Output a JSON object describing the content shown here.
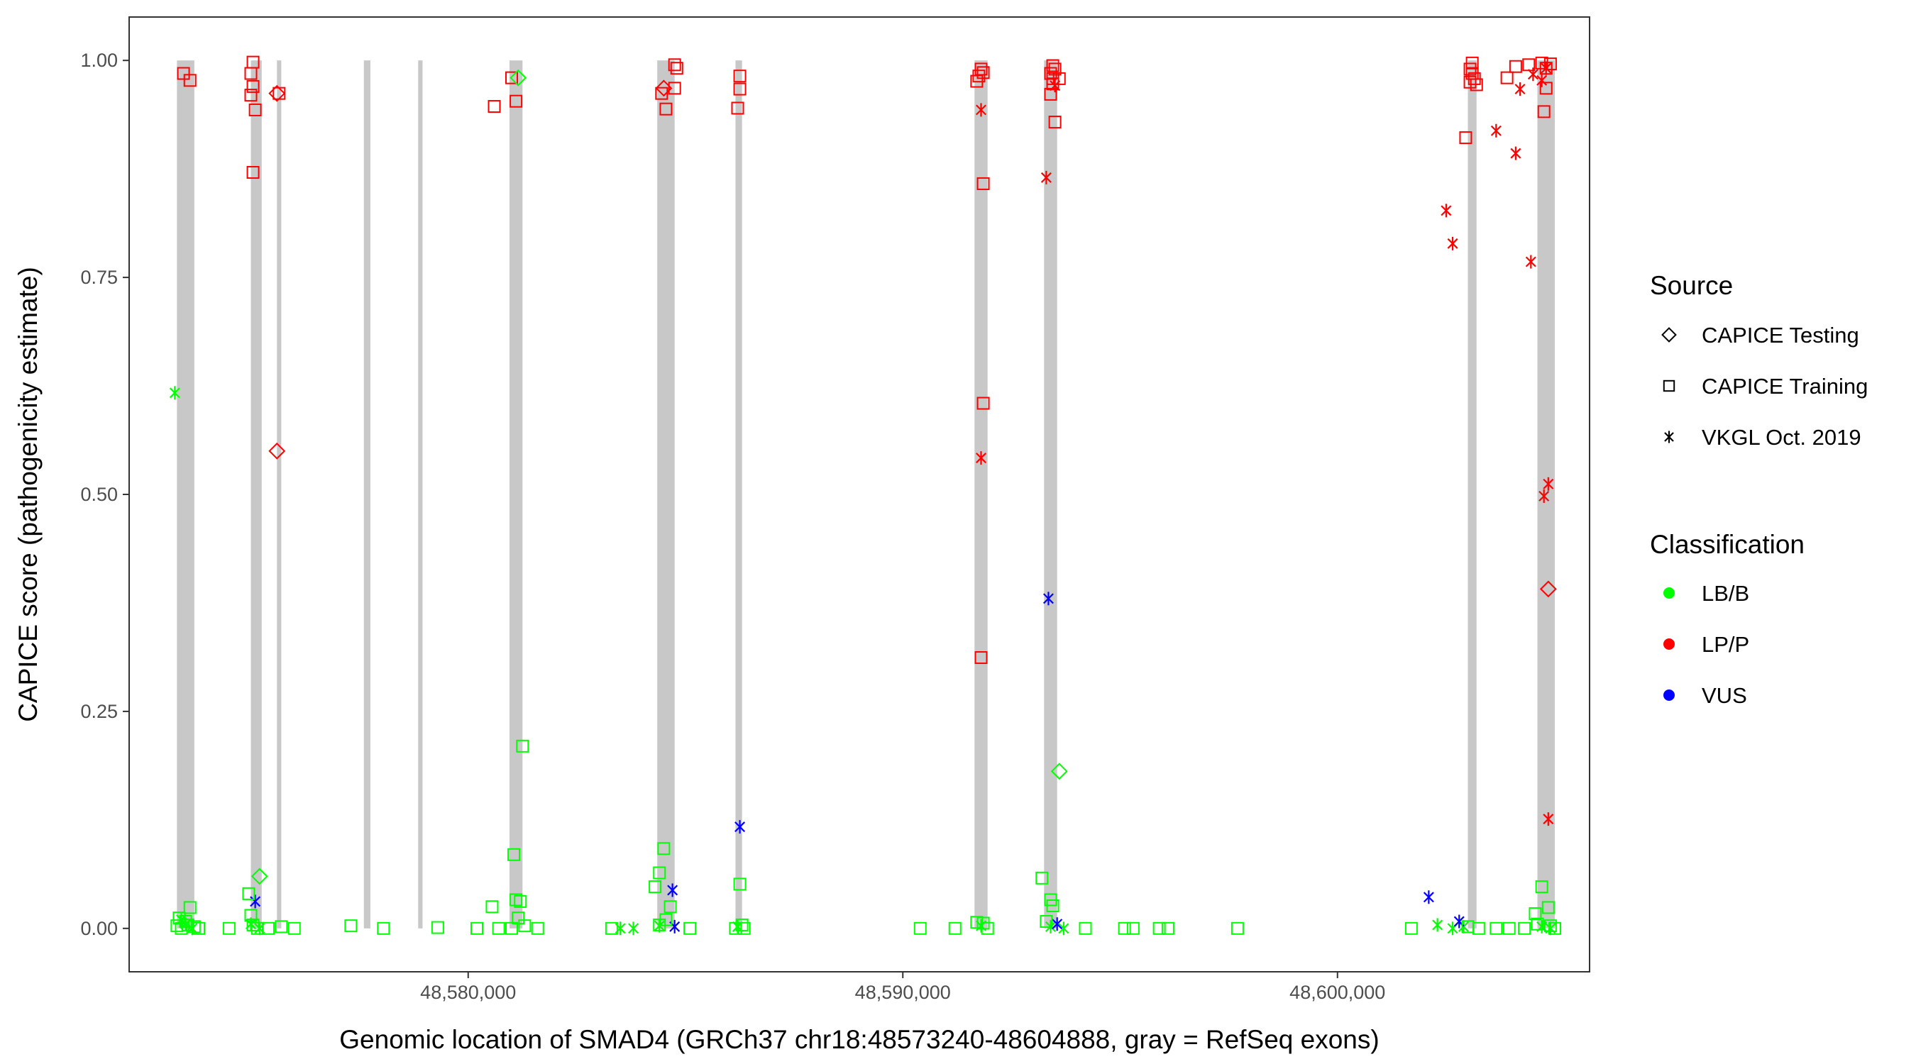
{
  "chart_data": {
    "type": "scatter",
    "title": "",
    "xlabel": "Genomic location of SMAD4 (GRCh37 chr18:48573240-48604888, gray = RefSeq exons)",
    "ylabel": "CAPICE score (pathogenicity estimate)",
    "xlim": [
      48572200,
      48605800
    ],
    "ylim": [
      -0.05,
      1.05
    ],
    "x_ticks": [
      48580000,
      48590000,
      48600000
    ],
    "x_tick_labels": [
      "48,580,000",
      "48,590,000",
      "48,600,000"
    ],
    "y_ticks": [
      0,
      0.25,
      0.5,
      0.75,
      1.0
    ],
    "y_tick_labels": [
      "0.00",
      "0.25",
      "0.50",
      "0.75",
      "1.00"
    ],
    "grid": false,
    "exons": [
      [
        48573300,
        48573700
      ],
      [
        48575000,
        48575250
      ],
      [
        48575600,
        48575700
      ],
      [
        48577600,
        48577750
      ],
      [
        48578850,
        48578950
      ],
      [
        48580950,
        48581250
      ],
      [
        48584350,
        48584750
      ],
      [
        48586150,
        48586300
      ],
      [
        48591650,
        48591950
      ],
      [
        48593250,
        48593550
      ],
      [
        48603000,
        48603200
      ],
      [
        48604600,
        48605000
      ]
    ],
    "legend": {
      "position": "right",
      "source_title": "Source",
      "source_items": [
        {
          "label": "CAPICE Testing",
          "shape": "diamond"
        },
        {
          "label": "CAPICE Training",
          "shape": "square"
        },
        {
          "label": "VKGL Oct. 2019",
          "shape": "asterisk"
        }
      ],
      "classification_title": "Classification",
      "classification_items": [
        {
          "label": "LB/B",
          "color": "#00ff00"
        },
        {
          "label": "LP/P",
          "color": "#ff0000"
        },
        {
          "label": "VUS",
          "color": "#0000ff"
        }
      ]
    },
    "series": [
      {
        "source": "CAPICE Training",
        "classification": "LP/P",
        "shape": "square",
        "color": "#ff0000",
        "points": [
          [
            48573450,
            0.985
          ],
          [
            48573600,
            0.977
          ],
          [
            48575050,
            0.998
          ],
          [
            48575000,
            0.985
          ],
          [
            48575050,
            0.97
          ],
          [
            48575000,
            0.96
          ],
          [
            48575100,
            0.943
          ],
          [
            48575050,
            0.871
          ],
          [
            48575650,
            0.962
          ],
          [
            48580600,
            0.947
          ],
          [
            48581000,
            0.98
          ],
          [
            48581100,
            0.953
          ],
          [
            48584450,
            0.962
          ],
          [
            48584550,
            0.944
          ],
          [
            48584750,
            0.995
          ],
          [
            48584800,
            0.991
          ],
          [
            48584750,
            0.968
          ],
          [
            48586250,
            0.982
          ],
          [
            48586250,
            0.967
          ],
          [
            48586200,
            0.945
          ],
          [
            48591800,
            0.99
          ],
          [
            48591850,
            0.986
          ],
          [
            48591750,
            0.982
          ],
          [
            48591700,
            0.976
          ],
          [
            48591850,
            0.858
          ],
          [
            48591850,
            0.605
          ],
          [
            48591800,
            0.312
          ],
          [
            48593450,
            0.994
          ],
          [
            48593500,
            0.99
          ],
          [
            48593400,
            0.985
          ],
          [
            48593450,
            0.979
          ],
          [
            48593600,
            0.979
          ],
          [
            48593450,
            0.973
          ],
          [
            48593400,
            0.961
          ],
          [
            48593500,
            0.929
          ],
          [
            48603100,
            0.997
          ],
          [
            48603050,
            0.99
          ],
          [
            48603100,
            0.985
          ],
          [
            48603150,
            0.979
          ],
          [
            48603050,
            0.975
          ],
          [
            48603200,
            0.972
          ],
          [
            48602950,
            0.911
          ],
          [
            48604100,
            0.993
          ],
          [
            48604400,
            0.995
          ],
          [
            48604700,
            0.997
          ],
          [
            48604800,
            0.991
          ],
          [
            48604900,
            0.996
          ],
          [
            48603900,
            0.98
          ],
          [
            48604800,
            0.968
          ],
          [
            48604750,
            0.941
          ]
        ]
      },
      {
        "source": "CAPICE Testing",
        "classification": "LP/P",
        "shape": "diamond",
        "color": "#ff0000",
        "points": [
          [
            48575600,
            0.962
          ],
          [
            48575600,
            0.55
          ],
          [
            48584500,
            0.968
          ],
          [
            48604850,
            0.391
          ]
        ]
      },
      {
        "source": "VKGL Oct. 2019",
        "classification": "LP/P",
        "shape": "asterisk",
        "color": "#ff0000",
        "points": [
          [
            48591800,
            0.943
          ],
          [
            48591800,
            0.542
          ],
          [
            48593300,
            0.865
          ],
          [
            48593500,
            0.971
          ],
          [
            48602500,
            0.827
          ],
          [
            48602650,
            0.789
          ],
          [
            48603650,
            0.919
          ],
          [
            48604100,
            0.893
          ],
          [
            48604200,
            0.967
          ],
          [
            48604500,
            0.984
          ],
          [
            48604450,
            0.768
          ],
          [
            48604700,
            0.977
          ],
          [
            48604800,
            0.991
          ],
          [
            48604850,
            0.512
          ],
          [
            48604750,
            0.498
          ],
          [
            48604850,
            0.126
          ]
        ]
      },
      {
        "source": "VKGL Oct. 2019",
        "classification": "LB/B",
        "shape": "asterisk",
        "color": "#00ff00",
        "points": [
          [
            48573250,
            0.617
          ],
          [
            48573400,
            0.01
          ],
          [
            48573500,
            0.005
          ],
          [
            48573650,
            0.0
          ],
          [
            48575000,
            0.005
          ],
          [
            48575200,
            0.0
          ],
          [
            48583500,
            0.0
          ],
          [
            48583800,
            0.0
          ],
          [
            48584400,
            0.003
          ],
          [
            48586200,
            0.002
          ],
          [
            48591800,
            0.003
          ],
          [
            48593400,
            0.002
          ],
          [
            48593700,
            0.0
          ],
          [
            48602300,
            0.004
          ],
          [
            48602650,
            0.0
          ],
          [
            48602900,
            0.002
          ],
          [
            48604700,
            0.002
          ],
          [
            48604900,
            0.0
          ]
        ]
      },
      {
        "source": "VKGL Oct. 2019",
        "classification": "VUS",
        "shape": "asterisk",
        "color": "#0000ff",
        "points": [
          [
            48575100,
            0.031
          ],
          [
            48584700,
            0.044
          ],
          [
            48584750,
            0.002
          ],
          [
            48586250,
            0.117
          ],
          [
            48593350,
            0.38
          ],
          [
            48593550,
            0.005
          ],
          [
            48602100,
            0.036
          ],
          [
            48602800,
            0.008
          ]
        ]
      },
      {
        "source": "CAPICE Testing",
        "classification": "LB/B",
        "shape": "diamond",
        "color": "#00ff00",
        "points": [
          [
            48581150,
            0.98
          ],
          [
            48575200,
            0.06
          ],
          [
            48593600,
            0.181
          ]
        ]
      },
      {
        "source": "CAPICE Training",
        "classification": "LB/B",
        "shape": "square",
        "color": "#00ff00",
        "points": [
          [
            48573350,
            0.012
          ],
          [
            48573500,
            0.008
          ],
          [
            48573600,
            0.024
          ],
          [
            48573550,
            0.004
          ],
          [
            48573700,
            0.002
          ],
          [
            48573800,
            0.0
          ],
          [
            48573400,
            0.0
          ],
          [
            48573300,
            0.003
          ],
          [
            48574500,
            0.0
          ],
          [
            48574950,
            0.04
          ],
          [
            48575000,
            0.015
          ],
          [
            48575050,
            0.004
          ],
          [
            48575150,
            0.0
          ],
          [
            48575400,
            0.0
          ],
          [
            48575700,
            0.002
          ],
          [
            48576000,
            0.0
          ],
          [
            48577300,
            0.003
          ],
          [
            48578050,
            0.0
          ],
          [
            48579300,
            0.001
          ],
          [
            48580200,
            0.0
          ],
          [
            48580550,
            0.025
          ],
          [
            48580700,
            0.0
          ],
          [
            48581000,
            0.0
          ],
          [
            48581050,
            0.085
          ],
          [
            48581100,
            0.033
          ],
          [
            48581200,
            0.031
          ],
          [
            48581150,
            0.012
          ],
          [
            48581250,
            0.21
          ],
          [
            48581300,
            0.003
          ],
          [
            48581600,
            0.0
          ],
          [
            48583300,
            0.0
          ],
          [
            48584300,
            0.048
          ],
          [
            48584400,
            0.064
          ],
          [
            48584500,
            0.092
          ],
          [
            48584650,
            0.025
          ],
          [
            48584550,
            0.01
          ],
          [
            48584400,
            0.004
          ],
          [
            48585100,
            0.0
          ],
          [
            48586150,
            0.0
          ],
          [
            48586250,
            0.051
          ],
          [
            48586300,
            0.004
          ],
          [
            48586350,
            0.0
          ],
          [
            48590400,
            0.0
          ],
          [
            48591200,
            0.0
          ],
          [
            48591700,
            0.007
          ],
          [
            48591850,
            0.006
          ],
          [
            48591950,
            0.0
          ],
          [
            48593200,
            0.058
          ],
          [
            48593400,
            0.033
          ],
          [
            48593450,
            0.026
          ],
          [
            48593300,
            0.008
          ],
          [
            48594200,
            0.0
          ],
          [
            48595100,
            0.0
          ],
          [
            48595300,
            0.0
          ],
          [
            48595900,
            0.0
          ],
          [
            48596100,
            0.0
          ],
          [
            48597700,
            0.0
          ],
          [
            48601700,
            0.0
          ],
          [
            48603000,
            0.002
          ],
          [
            48603250,
            0.0
          ],
          [
            48603650,
            0.0
          ],
          [
            48603950,
            0.0
          ],
          [
            48604300,
            0.0
          ],
          [
            48604700,
            0.048
          ],
          [
            48604850,
            0.024
          ],
          [
            48604550,
            0.017
          ],
          [
            48604600,
            0.005
          ],
          [
            48604900,
            0.003
          ],
          [
            48605000,
            0.0
          ]
        ]
      }
    ]
  }
}
